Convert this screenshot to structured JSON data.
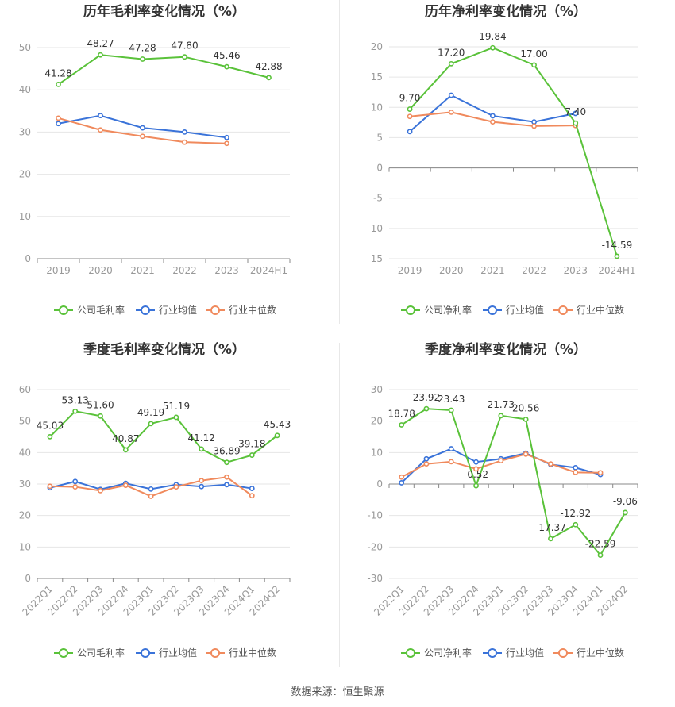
{
  "source_text": "数据来源：恒生聚源",
  "legend_series": [
    "行业均值",
    "行业中位数"
  ],
  "colors": {
    "company": "#5ac23a",
    "mean": "#3a73d9",
    "median": "#f08a5d",
    "grid": "#e6e6e6",
    "axis": "#999999",
    "title": "#333333"
  },
  "chart_data": [
    {
      "type": "line",
      "title": "历年毛利率变化情况（%）",
      "categories": [
        "2019",
        "2020",
        "2021",
        "2022",
        "2023",
        "2024H1"
      ],
      "ylim": [
        0,
        50
      ],
      "yticks": [
        0,
        10,
        20,
        30,
        40,
        50
      ],
      "grid": true,
      "legend_position": "bottom",
      "series": [
        {
          "name": "公司毛利率",
          "values": [
            41.28,
            48.27,
            47.28,
            47.8,
            45.46,
            42.88
          ],
          "labels": [
            "41.28",
            "48.27",
            "47.28",
            "47.80",
            "45.46",
            "42.88"
          ]
        },
        {
          "name": "行业均值",
          "values": [
            32.0,
            33.9,
            31.0,
            30.0,
            28.7,
            null
          ]
        },
        {
          "name": "行业中位数",
          "values": [
            33.3,
            30.5,
            29.0,
            27.6,
            27.3,
            null
          ]
        }
      ]
    },
    {
      "type": "line",
      "title": "历年净利率变化情况（%）",
      "categories": [
        "2019",
        "2020",
        "2021",
        "2022",
        "2023",
        "2024H1"
      ],
      "ylim": [
        -15,
        20
      ],
      "yticks": [
        -15,
        -10,
        -5,
        0,
        5,
        10,
        15,
        20
      ],
      "grid": true,
      "legend_position": "bottom",
      "series": [
        {
          "name": "公司净利率",
          "values": [
            9.7,
            17.2,
            19.84,
            17.0,
            7.4,
            -14.59
          ],
          "labels": [
            "9.70",
            "17.20",
            "19.84",
            "17.00",
            "7.40",
            "-14.59"
          ]
        },
        {
          "name": "行业均值",
          "values": [
            6.0,
            12.0,
            8.6,
            7.6,
            9.0,
            null
          ]
        },
        {
          "name": "行业中位数",
          "values": [
            8.5,
            9.2,
            7.6,
            6.9,
            7.0,
            null
          ]
        }
      ]
    },
    {
      "type": "line",
      "title": "季度毛利率变化情况（%）",
      "categories": [
        "2022Q1",
        "2022Q2",
        "2022Q3",
        "2022Q4",
        "2023Q1",
        "2023Q2",
        "2023Q3",
        "2023Q4",
        "2024Q1",
        "2024Q2"
      ],
      "ylim": [
        0,
        60
      ],
      "yticks": [
        0,
        10,
        20,
        30,
        40,
        50,
        60
      ],
      "grid": true,
      "legend_position": "bottom",
      "series": [
        {
          "name": "公司毛利率",
          "values": [
            45.03,
            53.13,
            51.6,
            40.87,
            49.19,
            51.19,
            41.12,
            36.89,
            39.18,
            45.43
          ],
          "labels": [
            "45.03",
            "53.13",
            "51.60",
            "40.87",
            "49.19",
            "51.19",
            "41.12",
            "36.89",
            "39.18",
            "45.43"
          ]
        },
        {
          "name": "行业均值",
          "values": [
            28.8,
            30.8,
            28.3,
            30.2,
            28.4,
            29.8,
            29.2,
            29.8,
            28.6,
            null
          ]
        },
        {
          "name": "行业中位数",
          "values": [
            29.3,
            29.1,
            27.9,
            29.6,
            26.1,
            29.1,
            31.1,
            32.2,
            26.3,
            null
          ]
        }
      ]
    },
    {
      "type": "line",
      "title": "季度净利率变化情况（%）",
      "categories": [
        "2022Q1",
        "2022Q2",
        "2022Q3",
        "2022Q4",
        "2023Q1",
        "2023Q2",
        "2023Q3",
        "2023Q4",
        "2024Q1",
        "2024Q2"
      ],
      "ylim": [
        -30,
        30
      ],
      "yticks": [
        -30,
        -20,
        -10,
        0,
        10,
        20,
        30
      ],
      "grid": true,
      "legend_position": "bottom",
      "series": [
        {
          "name": "公司净利率",
          "values": [
            18.78,
            23.92,
            23.43,
            -0.52,
            21.73,
            20.56,
            -17.37,
            -12.92,
            -22.59,
            -9.06
          ],
          "labels": [
            "18.78",
            "23.92",
            "23.43",
            "-0.52",
            "21.73",
            "20.56",
            "-17.37",
            "-12.92",
            "-22.59",
            "-9.06"
          ]
        },
        {
          "name": "行业均值",
          "values": [
            0.4,
            8.0,
            11.2,
            7.0,
            8.0,
            9.8,
            6.2,
            5.2,
            3.0,
            null
          ]
        },
        {
          "name": "行业中位数",
          "values": [
            2.2,
            6.4,
            7.1,
            4.8,
            7.4,
            9.5,
            6.4,
            3.7,
            3.6,
            null
          ]
        }
      ]
    }
  ]
}
